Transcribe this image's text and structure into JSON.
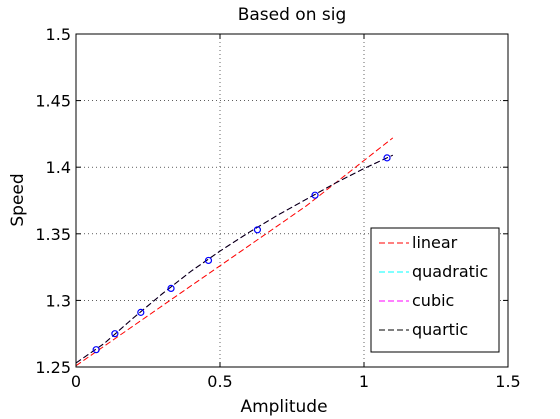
{
  "chart_data": {
    "type": "line",
    "title": "Based on sig",
    "xlabel": "Amplitude",
    "ylabel": "Speed",
    "xlim": [
      0,
      1.5
    ],
    "ylim": [
      1.25,
      1.5
    ],
    "xticks": [
      "0",
      "0.5",
      "1",
      "1.5"
    ],
    "xtick_values": [
      0,
      0.5,
      1,
      1.5
    ],
    "yticks": [
      "1.25",
      "1.3",
      "1.35",
      "1.4",
      "1.45",
      "1.5"
    ],
    "ytick_values": [
      1.25,
      1.3,
      1.35,
      1.4,
      1.45,
      1.5
    ],
    "grid": true,
    "legend_placement": "lower-right",
    "points": {
      "x": [
        0.07,
        0.135,
        0.225,
        0.33,
        0.46,
        0.63,
        0.83,
        1.08
      ],
      "y": [
        1.263,
        1.275,
        1.291,
        1.309,
        1.33,
        1.353,
        1.379,
        1.407
      ],
      "color": "#0000ff"
    },
    "series": [
      {
        "name": "linear",
        "color": "#ff0000",
        "x": [
          0,
          0.1,
          0.2,
          0.3,
          0.4,
          0.5,
          0.6,
          0.7,
          0.8,
          0.9,
          1.0,
          1.1
        ],
        "y": [
          1.251,
          1.266,
          1.281,
          1.296,
          1.311,
          1.326,
          1.341,
          1.356,
          1.371,
          1.388,
          1.405,
          1.422
        ]
      },
      {
        "name": "quadratic",
        "color": "#00ffff",
        "x": [
          0,
          0.1,
          0.2,
          0.3,
          0.4,
          0.5,
          0.6,
          0.7,
          0.8,
          0.9,
          1.0,
          1.1
        ],
        "y": [
          1.253,
          1.268,
          1.287,
          1.305,
          1.322,
          1.337,
          1.351,
          1.364,
          1.376,
          1.388,
          1.399,
          1.409
        ]
      },
      {
        "name": "cubic",
        "color": "#ff00ff",
        "x": [
          0,
          0.1,
          0.2,
          0.3,
          0.4,
          0.5,
          0.6,
          0.7,
          0.8,
          0.9,
          1.0,
          1.1
        ],
        "y": [
          1.253,
          1.268,
          1.287,
          1.305,
          1.322,
          1.337,
          1.351,
          1.364,
          1.376,
          1.388,
          1.399,
          1.409
        ]
      },
      {
        "name": "quartic",
        "color": "#000000",
        "x": [
          0,
          0.1,
          0.2,
          0.3,
          0.4,
          0.5,
          0.6,
          0.7,
          0.8,
          0.9,
          1.0,
          1.1
        ],
        "y": [
          1.253,
          1.268,
          1.287,
          1.305,
          1.322,
          1.337,
          1.351,
          1.364,
          1.376,
          1.388,
          1.399,
          1.409
        ]
      }
    ]
  }
}
